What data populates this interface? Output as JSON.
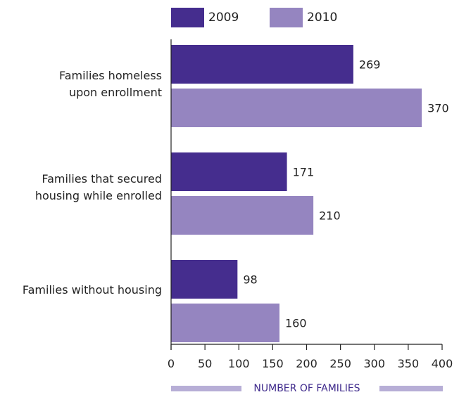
{
  "chart_data": {
    "type": "bar",
    "orientation": "horizontal",
    "categories": [
      "Families homeless\nupon enrollment",
      "Families that secured\nhousing while enrolled",
      "Families without housing"
    ],
    "series": [
      {
        "name": "2009",
        "values": [
          269,
          171,
          98
        ],
        "color": "#452d8e"
      },
      {
        "name": "2010",
        "values": [
          370,
          210,
          160
        ],
        "color": "#9585c0"
      }
    ],
    "xlabel": "NUMBER OF FAMILIES",
    "xlim": [
      0,
      400
    ],
    "xticks": [
      "0",
      "50",
      "100",
      "150",
      "200",
      "250",
      "300",
      "350",
      "400"
    ],
    "legend_position": "top",
    "grid": false
  }
}
